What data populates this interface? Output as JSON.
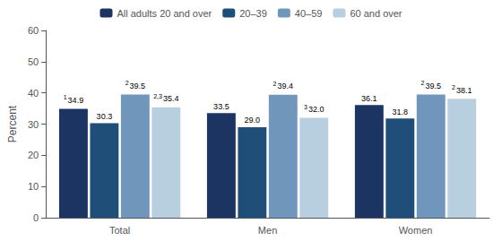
{
  "chart_data": {
    "type": "bar",
    "categories": [
      "Total",
      "Men",
      "Women"
    ],
    "series": [
      {
        "name": "All adults 20 and over",
        "color": "#1c3461",
        "values": [
          34.9,
          33.5,
          36.1
        ],
        "value_labels": [
          "34.9",
          "33.5",
          "36.1"
        ],
        "superscripts": [
          "1",
          null,
          null
        ]
      },
      {
        "name": "20–39",
        "color": "#1f4e79",
        "values": [
          30.3,
          29.0,
          31.8
        ],
        "value_labels": [
          "30.3",
          "29.0",
          "31.8"
        ],
        "superscripts": [
          null,
          null,
          null
        ]
      },
      {
        "name": "40–59",
        "color": "#7096bc",
        "values": [
          39.5,
          39.4,
          39.5
        ],
        "value_labels": [
          "39.5",
          "39.4",
          "39.5"
        ],
        "superscripts": [
          "2",
          "2",
          "2"
        ]
      },
      {
        "name": "60 and over",
        "color": "#b8cfe0",
        "values": [
          35.4,
          32.0,
          38.1
        ],
        "value_labels": [
          "35.4",
          "32.0",
          "38.1"
        ],
        "superscripts": [
          "2,3",
          "3",
          "2"
        ]
      }
    ],
    "ylabel": "Percent",
    "ylim": [
      0,
      60
    ],
    "yticks": [
      0,
      10,
      20,
      30,
      40,
      50,
      60
    ],
    "grid": false,
    "legend": "top",
    "data_labels": true
  }
}
